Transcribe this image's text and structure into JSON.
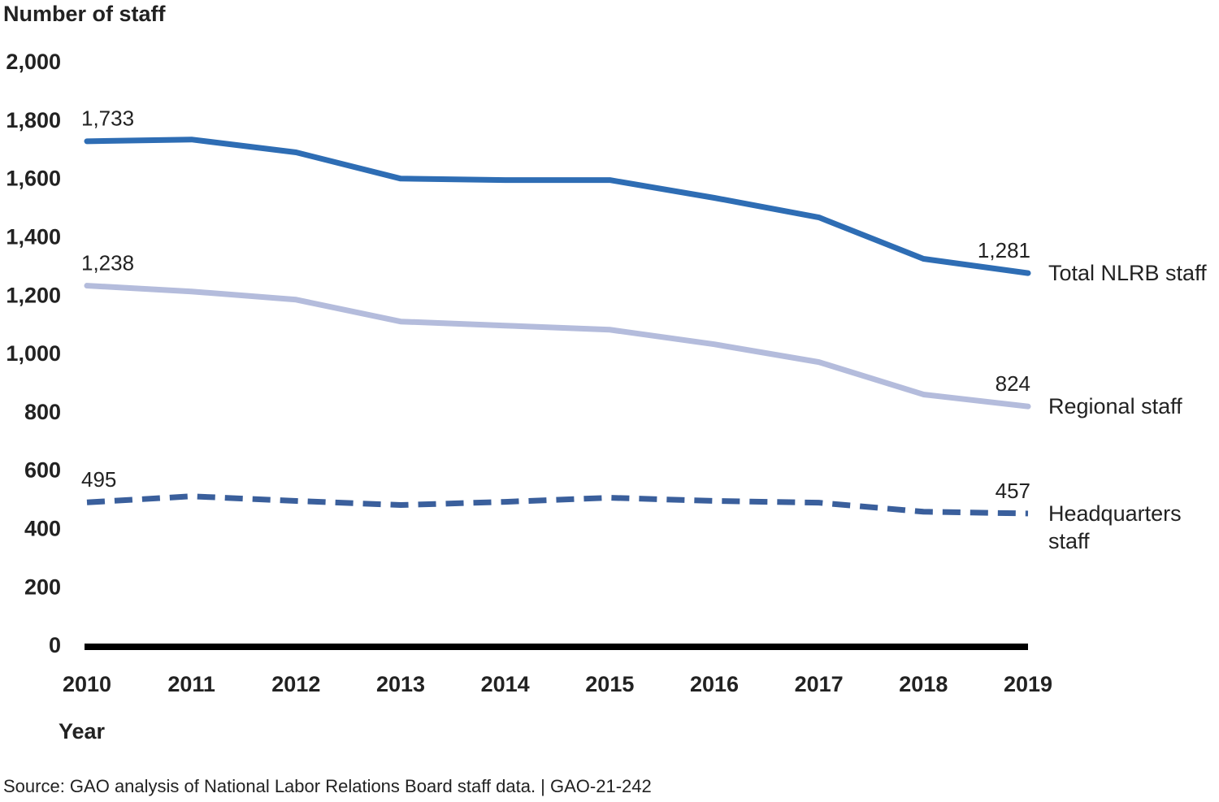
{
  "chart_data": {
    "type": "line",
    "title": "Number of staff",
    "x_label": "Year",
    "source": "Source: GAO analysis of National Labor Relations Board staff data.  |  GAO-21-242",
    "categories": [
      "2010",
      "2011",
      "2012",
      "2013",
      "2014",
      "2015",
      "2016",
      "2017",
      "2018",
      "2019"
    ],
    "ylim": [
      0,
      2000
    ],
    "yticks": [
      0,
      200,
      400,
      600,
      800,
      {
        "value": 1000,
        "label": "1,000"
      },
      {
        "value": 1200,
        "label": "1,200"
      },
      {
        "value": 1400,
        "label": "1,400"
      },
      {
        "value": 1600,
        "label": "1,600"
      },
      {
        "value": 1800,
        "label": "1,800"
      },
      {
        "value": 2000,
        "label": "2,000"
      }
    ],
    "grid": false,
    "series": [
      {
        "name": "Total NLRB staff",
        "color": "#2e6db4",
        "style": "solid",
        "values": [
          1733,
          1739,
          1695,
          1605,
          1600,
          1600,
          1539,
          1472,
          1330,
          1281
        ],
        "value_labels": [
          "1,733",
          null,
          null,
          null,
          null,
          null,
          null,
          null,
          null,
          "1,281"
        ]
      },
      {
        "name": "Regional staff",
        "color": "#b4bcdc",
        "style": "solid",
        "values": [
          1238,
          1218,
          1190,
          1115,
          1101,
          1087,
          1037,
          976,
          865,
          824
        ],
        "value_labels": [
          "1,238",
          null,
          null,
          null,
          null,
          null,
          null,
          null,
          null,
          "824"
        ]
      },
      {
        "name": "Headquarters staff",
        "color": "#3a5f9c",
        "style": "dashed",
        "values": [
          495,
          516,
          500,
          486,
          497,
          511,
          500,
          494,
          463,
          457
        ],
        "value_labels": [
          "495",
          null,
          null,
          null,
          null,
          null,
          null,
          null,
          null,
          "457"
        ]
      }
    ]
  }
}
